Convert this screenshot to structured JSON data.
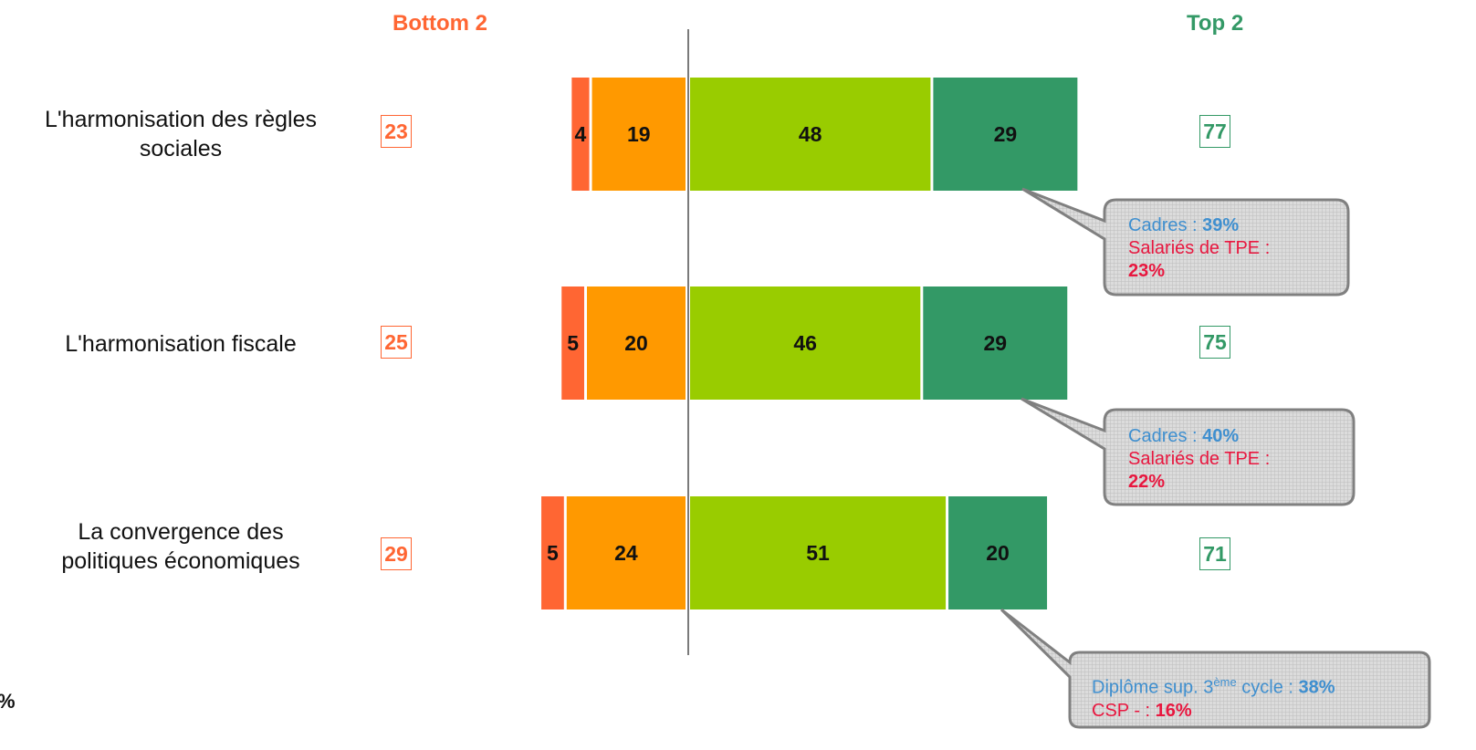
{
  "chart_data": {
    "type": "bar",
    "stacked": true,
    "orientation": "horizontal",
    "headers": {
      "bottom": "Bottom 2",
      "top": "Top 2"
    },
    "categories": [
      "L'harmonisation des règles sociales",
      "L'harmonisation fiscale",
      "La convergence des politiques économiques"
    ],
    "series": [
      {
        "values": [
          4,
          5,
          5
        ],
        "color": "#ff6633",
        "side": "negative"
      },
      {
        "values": [
          19,
          20,
          24
        ],
        "color": "#ff9900",
        "side": "negative"
      },
      {
        "values": [
          48,
          46,
          51
        ],
        "color": "#99cc00",
        "side": "positive"
      },
      {
        "values": [
          29,
          29,
          20
        ],
        "color": "#339966",
        "side": "positive"
      }
    ],
    "bottom2": [
      23,
      25,
      29
    ],
    "top2": [
      77,
      75,
      71
    ],
    "colors": {
      "bottom_header": "#ff6633",
      "top_header": "#339966",
      "callout_blue": "#3f8fcf",
      "callout_red": "#e8173f"
    }
  },
  "labels": {
    "cat0_line1": "L'harmonisation des règles",
    "cat0_line2": "sociales",
    "cat1_line1": "L'harmonisation fiscale",
    "cat2_line1": "La convergence des",
    "cat2_line2": "politiques économiques"
  },
  "callouts": [
    {
      "line1_label": "Cadres : ",
      "line1_value": "39%",
      "line2_label": "Salariés de TPE :",
      "line3_value": "23%"
    },
    {
      "line1_label": "Cadres : ",
      "line1_value": "40%",
      "line2_label": "Salariés de TPE :",
      "line3_value": "22%"
    },
    {
      "line1_label_a": "Diplôme sup. 3",
      "line1_sup": "ème",
      "line1_label_b": " cycle : ",
      "line1_value": "38%",
      "line2_label": "CSP - : ",
      "line2_value": "16%"
    }
  ],
  "cut_text": "%"
}
